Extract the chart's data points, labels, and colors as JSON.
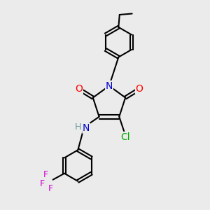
{
  "background_color": "#ebebeb",
  "bond_color": "#000000",
  "bond_width": 1.5,
  "atom_colors": {
    "O": "#ff0000",
    "N_ring": "#0000cc",
    "N_amine": "#0000cc",
    "H": "#669999",
    "Cl": "#00aa00",
    "F": "#cc00cc",
    "C": "#000000"
  },
  "font_size": 9,
  "figsize": [
    3.0,
    3.0
  ],
  "dpi": 100
}
